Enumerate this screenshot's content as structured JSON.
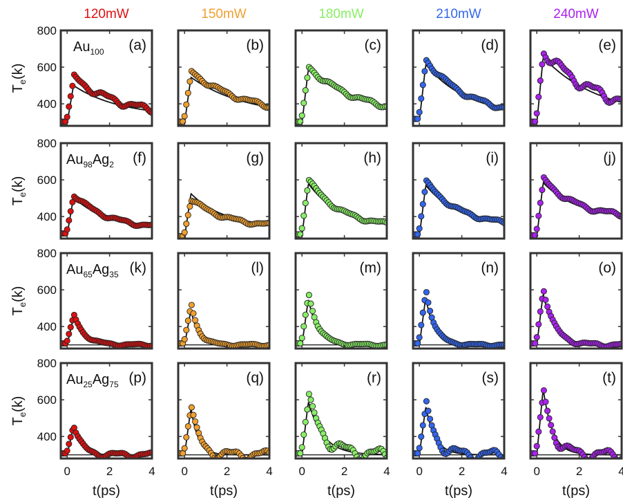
{
  "figure": {
    "x_axis_label": "t(ps)",
    "y_axis_label": "T",
    "y_axis_label_sub": "e",
    "y_axis_label_tail": "(k)"
  },
  "columns": [
    {
      "label": "120mW",
      "color": "#dd1111"
    },
    {
      "label": "150mW",
      "color": "#f0a030"
    },
    {
      "label": "180mW",
      "color": "#88ee66"
    },
    {
      "label": "210mW",
      "color": "#3366ee"
    },
    {
      "label": "240mW",
      "color": "#aa22ee"
    }
  ],
  "rows": [
    {
      "sample": {
        "main": "Au",
        "sub1": "100",
        "mid": "",
        "sub2": ""
      }
    },
    {
      "sample": {
        "main": "Au",
        "sub1": "98",
        "mid": "Ag",
        "sub2": "2"
      }
    },
    {
      "sample": {
        "main": "Au",
        "sub1": "65",
        "mid": "Ag",
        "sub2": "35"
      }
    },
    {
      "sample": {
        "main": "Au",
        "sub1": "25",
        "mid": "Ag",
        "sub2": "75"
      }
    }
  ],
  "chart_data": {
    "type": "scatter",
    "xlim": [
      -0.3,
      4.0
    ],
    "ylim": [
      280,
      800
    ],
    "xticks": [
      0,
      2,
      4
    ],
    "yticks": [
      400,
      600,
      800
    ],
    "xlabel": "t(ps)",
    "ylabel": "Te(k)",
    "panels": [
      {
        "label": "(a)",
        "power": "120mW",
        "sample": "Au100",
        "t0": 295,
        "fit_peak": 500,
        "data_peak": 545,
        "baseline": 330,
        "decay_ps": 2.2,
        "bump": 15
      },
      {
        "label": "(b)",
        "power": "150mW",
        "sample": "Au100",
        "t0": 295,
        "fit_peak": 545,
        "data_peak": 575,
        "baseline": 330,
        "decay_ps": 2.6,
        "bump": 10
      },
      {
        "label": "(c)",
        "power": "180mW",
        "sample": "Au100",
        "t0": 295,
        "fit_peak": 590,
        "data_peak": 600,
        "baseline": 330,
        "decay_ps": 2.4,
        "bump": 10
      },
      {
        "label": "(d)",
        "power": "210mW",
        "sample": "Au100",
        "t0": 310,
        "fit_peak": 615,
        "data_peak": 640,
        "baseline": 330,
        "decay_ps": 2.0,
        "bump": 10
      },
      {
        "label": "(e)",
        "power": "240mW",
        "sample": "Au100",
        "t0": 295,
        "fit_peak": 655,
        "data_peak": 690,
        "baseline": 330,
        "decay_ps": 2.6,
        "bump": 25
      },
      {
        "label": "(f)",
        "power": "120mW",
        "sample": "Au98Ag2",
        "t0": 300,
        "fit_peak": 505,
        "data_peak": 520,
        "baseline": 330,
        "decay_ps": 1.6,
        "bump": 8
      },
      {
        "label": "(g)",
        "power": "150mW",
        "sample": "Au98Ag2",
        "t0": 285,
        "fit_peak": 525,
        "data_peak": 495,
        "baseline": 340,
        "decay_ps": 1.6,
        "bump": 8
      },
      {
        "label": "(h)",
        "power": "180mW",
        "sample": "Au98Ag2",
        "t0": 295,
        "fit_peak": 580,
        "data_peak": 600,
        "baseline": 340,
        "decay_ps": 1.5,
        "bump": 8
      },
      {
        "label": "(i)",
        "power": "210mW",
        "sample": "Au98Ag2",
        "t0": 295,
        "fit_peak": 570,
        "data_peak": 590,
        "baseline": 345,
        "decay_ps": 1.6,
        "bump": 8
      },
      {
        "label": "(j)",
        "power": "240mW",
        "sample": "Au98Ag2",
        "t0": 290,
        "fit_peak": 585,
        "data_peak": 605,
        "baseline": 390,
        "decay_ps": 1.6,
        "bump": 10
      },
      {
        "label": "(k)",
        "power": "120mW",
        "sample": "Au65Ag35",
        "t0": 300,
        "fit_peak": 450,
        "data_peak": 465,
        "baseline": 300,
        "decay_ps": 0.5,
        "bump": 5
      },
      {
        "label": "(l)",
        "power": "150mW",
        "sample": "Au65Ag35",
        "t0": 300,
        "fit_peak": 490,
        "data_peak": 525,
        "baseline": 300,
        "decay_ps": 0.35,
        "bump": 5
      },
      {
        "label": "(m)",
        "power": "180mW",
        "sample": "Au65Ag35",
        "t0": 300,
        "fit_peak": 550,
        "data_peak": 580,
        "baseline": 300,
        "decay_ps": 0.45,
        "bump": 5
      },
      {
        "label": "(n)",
        "power": "210mW",
        "sample": "Au65Ag35",
        "t0": 300,
        "fit_peak": 560,
        "data_peak": 600,
        "baseline": 300,
        "decay_ps": 0.4,
        "bump": 5
      },
      {
        "label": "(o)",
        "power": "240mW",
        "sample": "Au65Ag35",
        "t0": 300,
        "fit_peak": 580,
        "data_peak": 610,
        "baseline": 300,
        "decay_ps": 0.5,
        "bump": 8
      },
      {
        "label": "(p)",
        "power": "120mW",
        "sample": "Au25Ag75",
        "t0": 300,
        "fit_peak": 455,
        "data_peak": 465,
        "baseline": 300,
        "decay_ps": 0.35,
        "bump": 12
      },
      {
        "label": "(q)",
        "power": "150mW",
        "sample": "Au25Ag75",
        "t0": 300,
        "fit_peak": 555,
        "data_peak": 565,
        "baseline": 300,
        "decay_ps": 0.35,
        "bump": 22
      },
      {
        "label": "(r)",
        "power": "180mW",
        "sample": "Au25Ag75",
        "t0": 300,
        "fit_peak": 590,
        "data_peak": 605,
        "baseline": 300,
        "decay_ps": 0.7,
        "bump": 30
      },
      {
        "label": "(s)",
        "power": "210mW",
        "sample": "Au25Ag75",
        "t0": 300,
        "fit_peak": 565,
        "data_peak": 575,
        "baseline": 300,
        "decay_ps": 0.45,
        "bump": 25
      },
      {
        "label": "(t)",
        "power": "240mW",
        "sample": "Au25Ag75",
        "t0": 300,
        "fit_peak": 660,
        "data_peak": 650,
        "baseline": 300,
        "decay_ps": 0.45,
        "bump": 25
      }
    ]
  }
}
